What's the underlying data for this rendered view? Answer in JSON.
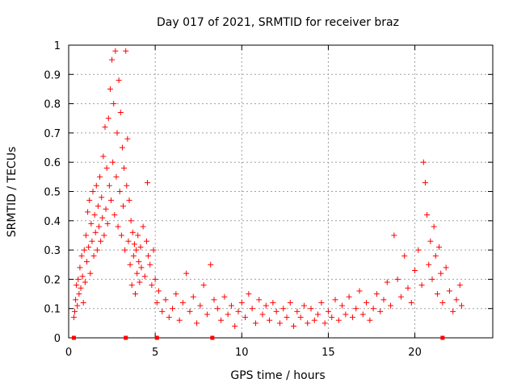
{
  "chart_data": {
    "type": "scatter",
    "title": "Day 017 of 2021, SRMTID for receiver braz",
    "xlabel": "GPS time / hours",
    "ylabel": "SRMTID / TECUs",
    "xlim": [
      0,
      24.5
    ],
    "ylim": [
      0,
      1
    ],
    "xticks": [
      0,
      5,
      10,
      15,
      20
    ],
    "yticks": [
      0,
      0.1,
      0.2,
      0.3,
      0.4,
      0.5,
      0.6,
      0.7,
      0.8,
      0.9,
      1
    ],
    "grid": true,
    "marker": "+",
    "color": "#ff0000",
    "baseline_markers_x": [
      0.3,
      3.3,
      5.1,
      8.3,
      21.6
    ],
    "series": [
      {
        "name": "SRMTID",
        "points": [
          [
            0.3,
            0.07
          ],
          [
            0.35,
            0.09
          ],
          [
            0.4,
            0.13
          ],
          [
            0.45,
            0.18
          ],
          [
            0.5,
            0.11
          ],
          [
            0.55,
            0.2
          ],
          [
            0.6,
            0.15
          ],
          [
            0.65,
            0.24
          ],
          [
            0.7,
            0.17
          ],
          [
            0.75,
            0.28
          ],
          [
            0.8,
            0.21
          ],
          [
            0.85,
            0.12
          ],
          [
            0.9,
            0.3
          ],
          [
            0.95,
            0.19
          ],
          [
            1.0,
            0.35
          ],
          [
            1.05,
            0.26
          ],
          [
            1.1,
            0.43
          ],
          [
            1.15,
            0.31
          ],
          [
            1.2,
            0.47
          ],
          [
            1.25,
            0.22
          ],
          [
            1.3,
            0.39
          ],
          [
            1.35,
            0.33
          ],
          [
            1.4,
            0.5
          ],
          [
            1.45,
            0.28
          ],
          [
            1.5,
            0.42
          ],
          [
            1.55,
            0.36
          ],
          [
            1.6,
            0.52
          ],
          [
            1.65,
            0.3
          ],
          [
            1.7,
            0.45
          ],
          [
            1.75,
            0.38
          ],
          [
            1.8,
            0.55
          ],
          [
            1.85,
            0.33
          ],
          [
            1.9,
            0.48
          ],
          [
            1.95,
            0.41
          ],
          [
            2.0,
            0.62
          ],
          [
            2.05,
            0.35
          ],
          [
            2.1,
            0.72
          ],
          [
            2.15,
            0.44
          ],
          [
            2.2,
            0.58
          ],
          [
            2.25,
            0.39
          ],
          [
            2.3,
            0.75
          ],
          [
            2.35,
            0.52
          ],
          [
            2.4,
            0.85
          ],
          [
            2.45,
            0.47
          ],
          [
            2.5,
            0.95
          ],
          [
            2.55,
            0.6
          ],
          [
            2.6,
            0.8
          ],
          [
            2.65,
            0.42
          ],
          [
            2.7,
            0.98
          ],
          [
            2.75,
            0.55
          ],
          [
            2.8,
            0.7
          ],
          [
            2.85,
            0.38
          ],
          [
            2.9,
            0.88
          ],
          [
            2.95,
            0.5
          ],
          [
            3.0,
            0.77
          ],
          [
            3.05,
            0.35
          ],
          [
            3.1,
            0.65
          ],
          [
            3.15,
            0.45
          ],
          [
            3.2,
            0.58
          ],
          [
            3.25,
            0.3
          ],
          [
            3.3,
            0.98
          ],
          [
            3.35,
            0.52
          ],
          [
            3.4,
            0.68
          ],
          [
            3.45,
            0.33
          ],
          [
            3.5,
            0.47
          ],
          [
            3.55,
            0.25
          ],
          [
            3.6,
            0.4
          ],
          [
            3.65,
            0.18
          ],
          [
            3.7,
            0.36
          ],
          [
            3.75,
            0.28
          ],
          [
            3.8,
            0.32
          ],
          [
            3.85,
            0.15
          ],
          [
            3.9,
            0.3
          ],
          [
            3.95,
            0.22
          ],
          [
            4.0,
            0.35
          ],
          [
            4.05,
            0.26
          ],
          [
            4.1,
            0.19
          ],
          [
            4.15,
            0.31
          ],
          [
            4.2,
            0.24
          ],
          [
            4.3,
            0.38
          ],
          [
            4.4,
            0.21
          ],
          [
            4.5,
            0.33
          ],
          [
            4.55,
            0.53
          ],
          [
            4.6,
            0.28
          ],
          [
            4.7,
            0.25
          ],
          [
            4.8,
            0.18
          ],
          [
            4.9,
            0.3
          ],
          [
            5.0,
            0.2
          ],
          [
            5.1,
            0.12
          ],
          [
            5.2,
            0.16
          ],
          [
            5.4,
            0.09
          ],
          [
            5.6,
            0.13
          ],
          [
            5.8,
            0.07
          ],
          [
            6.0,
            0.1
          ],
          [
            6.2,
            0.15
          ],
          [
            6.4,
            0.06
          ],
          [
            6.6,
            0.12
          ],
          [
            6.8,
            0.22
          ],
          [
            7.0,
            0.09
          ],
          [
            7.2,
            0.14
          ],
          [
            7.4,
            0.05
          ],
          [
            7.6,
            0.11
          ],
          [
            7.8,
            0.18
          ],
          [
            8.0,
            0.08
          ],
          [
            8.2,
            0.25
          ],
          [
            8.4,
            0.13
          ],
          [
            8.6,
            0.1
          ],
          [
            8.8,
            0.06
          ],
          [
            9.0,
            0.14
          ],
          [
            9.2,
            0.08
          ],
          [
            9.4,
            0.11
          ],
          [
            9.6,
            0.04
          ],
          [
            9.8,
            0.09
          ],
          [
            10.0,
            0.12
          ],
          [
            10.2,
            0.07
          ],
          [
            10.4,
            0.15
          ],
          [
            10.6,
            0.1
          ],
          [
            10.8,
            0.05
          ],
          [
            11.0,
            0.13
          ],
          [
            11.2,
            0.08
          ],
          [
            11.4,
            0.11
          ],
          [
            11.6,
            0.06
          ],
          [
            11.8,
            0.12
          ],
          [
            12.0,
            0.09
          ],
          [
            12.2,
            0.05
          ],
          [
            12.4,
            0.1
          ],
          [
            12.6,
            0.07
          ],
          [
            12.8,
            0.12
          ],
          [
            13.0,
            0.04
          ],
          [
            13.2,
            0.09
          ],
          [
            13.4,
            0.07
          ],
          [
            13.6,
            0.11
          ],
          [
            13.8,
            0.05
          ],
          [
            14.0,
            0.1
          ],
          [
            14.2,
            0.06
          ],
          [
            14.4,
            0.08
          ],
          [
            14.6,
            0.12
          ],
          [
            14.8,
            0.05
          ],
          [
            15.0,
            0.09
          ],
          [
            15.2,
            0.07
          ],
          [
            15.4,
            0.13
          ],
          [
            15.6,
            0.06
          ],
          [
            15.8,
            0.11
          ],
          [
            16.0,
            0.08
          ],
          [
            16.2,
            0.14
          ],
          [
            16.4,
            0.07
          ],
          [
            16.6,
            0.1
          ],
          [
            16.8,
            0.16
          ],
          [
            17.0,
            0.08
          ],
          [
            17.2,
            0.12
          ],
          [
            17.4,
            0.06
          ],
          [
            17.6,
            0.1
          ],
          [
            17.8,
            0.15
          ],
          [
            18.0,
            0.09
          ],
          [
            18.2,
            0.13
          ],
          [
            18.4,
            0.19
          ],
          [
            18.6,
            0.11
          ],
          [
            18.8,
            0.35
          ],
          [
            19.0,
            0.2
          ],
          [
            19.2,
            0.14
          ],
          [
            19.4,
            0.28
          ],
          [
            19.6,
            0.17
          ],
          [
            19.8,
            0.12
          ],
          [
            20.0,
            0.23
          ],
          [
            20.2,
            0.3
          ],
          [
            20.4,
            0.18
          ],
          [
            20.5,
            0.6
          ],
          [
            20.6,
            0.53
          ],
          [
            20.7,
            0.42
          ],
          [
            20.8,
            0.25
          ],
          [
            20.9,
            0.33
          ],
          [
            21.0,
            0.2
          ],
          [
            21.1,
            0.38
          ],
          [
            21.2,
            0.28
          ],
          [
            21.3,
            0.15
          ],
          [
            21.4,
            0.31
          ],
          [
            21.5,
            0.22
          ],
          [
            21.6,
            0.12
          ],
          [
            21.8,
            0.24
          ],
          [
            22.0,
            0.16
          ],
          [
            22.2,
            0.09
          ],
          [
            22.4,
            0.13
          ],
          [
            22.6,
            0.18
          ],
          [
            22.7,
            0.11
          ]
        ]
      }
    ]
  }
}
